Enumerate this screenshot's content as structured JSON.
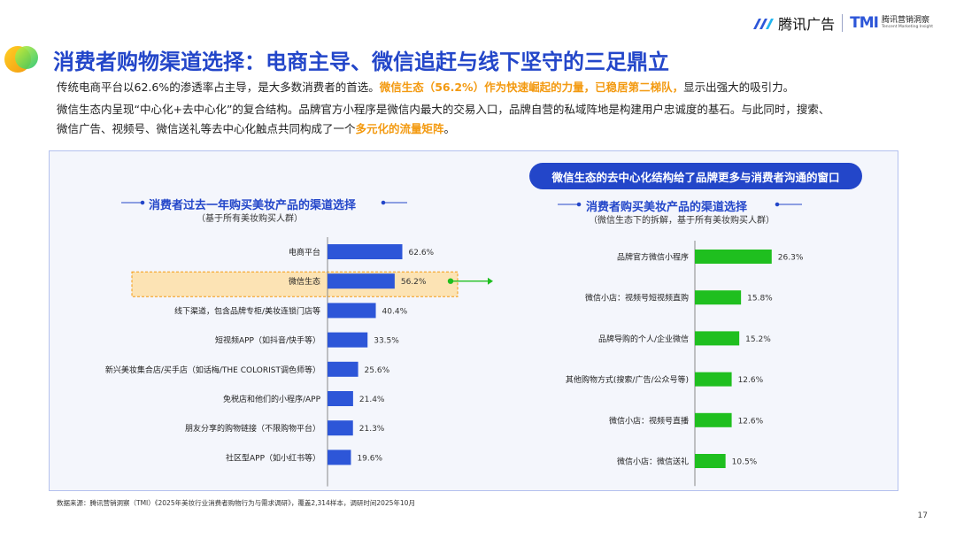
{
  "header": {
    "logo_tad": "腾讯广告",
    "logo_tmi_mark": "TMI",
    "logo_tmi_cn": "腾讯营销洞察",
    "logo_tmi_en": "Tencent Marketing Insight"
  },
  "title": "消费者购物渠道选择：电商主导、微信追赶与线下坚守的三足鼎立",
  "paragraphs": {
    "p1_a": "传统电商平台以62.6%的渗透率占主导，是大多数消费者的首选。",
    "p1_hl": "微信生态（56.2%）作为快速崛起的力量，已稳居第二梯队，",
    "p1_b": "显示出强大的吸引力。",
    "p2": "微信生态内呈现“中心化+去中心化”的复合结构。品牌官方小程序是微信内最大的交易入口，品牌自营的私域阵地是构建用户忠诚度的基石。与此同时，搜索、",
    "p3_a": "微信广告、视频号、微信送礼等去中心化触点共同构成了一个",
    "p3_hl": "多元化的流量矩阵",
    "p3_b": "。"
  },
  "callout": "微信生态的去中心化结构给了品牌更多与消费者沟通的窗口",
  "left_chart": {
    "subtitle": "消费者过去一年购买美妆产品的渠道选择",
    "note": "（基于所有美妆购买人群）"
  },
  "right_chart": {
    "subtitle": "消费者购买美妆产品的渠道选择",
    "note": "（微信生态下的拆解，基于所有美妆购买人群）"
  },
  "chart_data": [
    {
      "type": "bar",
      "orientation": "horizontal",
      "title": "消费者过去一年购买美妆产品的渠道选择",
      "categories": [
        "电商平台",
        "微信生态",
        "线下渠道，包含品牌专柜/美妆连锁门店等",
        "短视频APP（如抖音/快手等）",
        "新兴美妆集合店/买手店（如话梅/THE COLORIST调色师等）",
        "免税店和他们的小程序/APP",
        "朋友分享的购物链接（不限购物平台）",
        "社区型APP（如小红书等）"
      ],
      "values": [
        62.6,
        56.2,
        40.4,
        33.5,
        25.6,
        21.4,
        21.3,
        19.6
      ],
      "labels": [
        "62.6%",
        "56.2%",
        "40.4%",
        "33.5%",
        "25.6%",
        "21.4%",
        "21.3%",
        "19.6%"
      ],
      "highlight_index": 1,
      "bar_color": "#2d56d8",
      "highlight_color": "#fce3b4"
    },
    {
      "type": "bar",
      "orientation": "horizontal",
      "title": "消费者购买美妆产品的渠道选择",
      "categories": [
        "品牌官方微信小程序",
        "微信小店：视频号短视频直购",
        "品牌导购的个人/企业微信",
        "其他购物方式(搜索/广告/公众号等)",
        "微信小店：视频号直播",
        "微信小店：微信送礼"
      ],
      "values": [
        26.3,
        15.8,
        15.2,
        12.6,
        12.6,
        10.5
      ],
      "labels": [
        "26.3%",
        "15.8%",
        "15.2%",
        "12.6%",
        "12.6%",
        "10.5%"
      ],
      "bar_color": "#1fbf1f"
    }
  ],
  "source": "数据来源：腾讯营销洞察（TMI）《2025年美妆行业消费者购物行为与需求调研》，覆盖2,314样本，调研时间2025年10月",
  "page_number": "17",
  "colors": {
    "primary": "#2346c9",
    "accent": "#f39a11",
    "green": "#1fbf1f"
  }
}
